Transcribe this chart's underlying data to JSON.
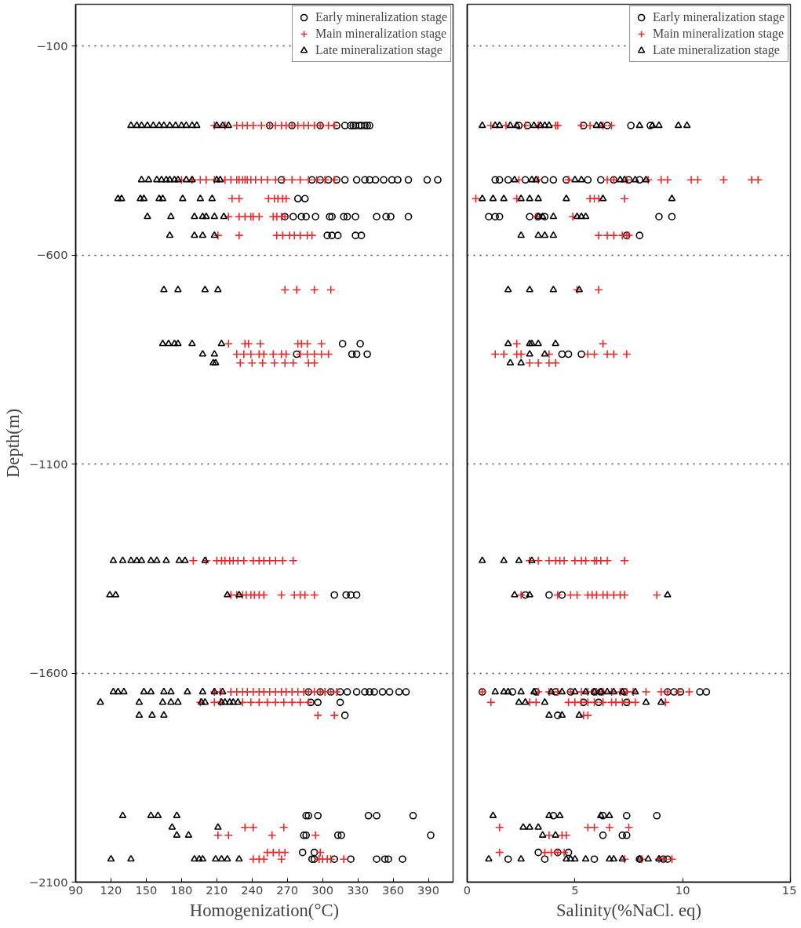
{
  "chart_data": [
    {
      "type": "scatter",
      "xlabel": "Homogenization(°C)",
      "ylabel": "Depth(m)",
      "xlim": [
        90,
        411
      ],
      "xticks": [
        90,
        120,
        150,
        180,
        210,
        240,
        270,
        300,
        330,
        360,
        390
      ],
      "ylim": [
        -2100,
        0
      ],
      "yticks": [
        -100,
        -600,
        -1100,
        -1600,
        -2100
      ],
      "grid": "y",
      "legend": "top right",
      "series": [
        {
          "name": "Early mineralization stage",
          "color": "#000000",
          "marker": "circle",
          "x": [
            255,
            274,
            298,
            312,
            319,
            324,
            326,
            328,
            331,
            333,
            336,
            338,
            340,
            265,
            291,
            298,
            305,
            312,
            319,
            329,
            336,
            340,
            345,
            352,
            359,
            364,
            373,
            389,
            398,
            279,
            285,
            268,
            275,
            282,
            286,
            294,
            306,
            308,
            318,
            321,
            328,
            346,
            354,
            358,
            373,
            304,
            308,
            313,
            328,
            333,
            317,
            332,
            278,
            325,
            329,
            338,
            310,
            320,
            324,
            329,
            288,
            298,
            307,
            315,
            321,
            329,
            336,
            340,
            344,
            351,
            357,
            365,
            371,
            290,
            296,
            315,
            319,
            286,
            288,
            296,
            339,
            346,
            377,
            284,
            286,
            313,
            316,
            392,
            283,
            293,
            291,
            293,
            310,
            324,
            346,
            353,
            356,
            368
          ],
          "values": [
            -290,
            -290,
            -290,
            -290,
            -290,
            -290,
            -290,
            -290,
            -290,
            -290,
            -290,
            -290,
            -290,
            -420,
            -420,
            -420,
            -420,
            -420,
            -420,
            -420,
            -420,
            -420,
            -420,
            -420,
            -420,
            -420,
            -420,
            -420,
            -420,
            -465,
            -465,
            -508,
            -508,
            -508,
            -508,
            -508,
            -508,
            -508,
            -508,
            -508,
            -508,
            -508,
            -508,
            -508,
            -508,
            -553,
            -553,
            -553,
            -553,
            -553,
            -812,
            -812,
            -837,
            -837,
            -837,
            -837,
            -1413,
            -1413,
            -1413,
            -1413,
            -1645,
            -1645,
            -1645,
            -1645,
            -1645,
            -1645,
            -1645,
            -1645,
            -1645,
            -1645,
            -1645,
            -1645,
            -1645,
            -1670,
            -1670,
            -1670,
            -1701,
            -1941,
            -1941,
            -1941,
            -1941,
            -1941,
            -1941,
            -1988,
            -1988,
            -1988,
            -1988,
            -1988,
            -2029,
            -2029,
            -2045,
            -2045,
            -2045,
            -2045,
            -2045,
            -2045,
            -2045,
            -2045
          ]
        },
        {
          "name": "Main mineralization stage",
          "color": "#e8282b",
          "marker": "cross",
          "x": [
            208,
            217,
            227,
            232,
            236,
            241,
            248,
            255,
            260,
            265,
            269,
            274,
            279,
            284,
            288,
            293,
            298,
            305,
            310,
            180,
            189,
            196,
            201,
            208,
            217,
            222,
            227,
            229,
            232,
            234,
            236,
            239,
            243,
            248,
            253,
            260,
            267,
            274,
            281,
            288,
            295,
            302,
            310,
            223,
            229,
            254,
            259,
            262,
            266,
            269,
            220,
            229,
            234,
            239,
            241,
            246,
            258,
            261,
            265,
            268,
            211,
            229,
            261,
            266,
            272,
            276,
            281,
            287,
            291,
            268,
            278,
            293,
            307,
            220,
            234,
            237,
            247,
            279,
            282,
            287,
            299,
            227,
            233,
            239,
            246,
            250,
            258,
            265,
            269,
            281,
            287,
            293,
            299,
            305,
            230,
            240,
            249,
            259,
            268,
            275,
            288,
            293,
            190,
            201,
            210,
            214,
            217,
            221,
            224,
            228,
            233,
            241,
            246,
            250,
            255,
            260,
            266,
            275,
            222,
            227,
            232,
            235,
            239,
            242,
            246,
            250,
            265,
            276,
            281,
            285,
            293,
            208,
            213,
            222,
            227,
            232,
            236,
            241,
            246,
            250,
            255,
            260,
            265,
            269,
            274,
            279,
            284,
            288,
            293,
            298,
            302,
            307,
            312,
            196,
            208,
            213,
            232,
            239,
            246,
            253,
            260,
            267,
            274,
            281,
            288,
            296,
            310,
            234,
            241,
            267,
            211,
            220,
            257,
            294,
            253,
            258,
            263,
            268,
            298,
            241,
            246,
            250,
            265,
            297,
            300,
            304,
            307,
            318
          ],
          "values": [
            -290,
            -290,
            -290,
            -290,
            -290,
            -290,
            -290,
            -290,
            -290,
            -290,
            -290,
            -290,
            -290,
            -290,
            -290,
            -290,
            -290,
            -290,
            -290,
            -420,
            -420,
            -420,
            -420,
            -420,
            -420,
            -420,
            -420,
            -420,
            -420,
            -420,
            -420,
            -420,
            -420,
            -420,
            -420,
            -420,
            -420,
            -420,
            -420,
            -420,
            -420,
            -420,
            -420,
            -465,
            -465,
            -465,
            -465,
            -465,
            -465,
            -465,
            -508,
            -508,
            -508,
            -508,
            -508,
            -508,
            -508,
            -508,
            -508,
            -508,
            -553,
            -553,
            -553,
            -553,
            -553,
            -553,
            -553,
            -553,
            -553,
            -683,
            -683,
            -683,
            -683,
            -812,
            -812,
            -812,
            -812,
            -812,
            -812,
            -812,
            -812,
            -837,
            -837,
            -837,
            -837,
            -837,
            -837,
            -837,
            -837,
            -837,
            -837,
            -837,
            -837,
            -837,
            -858,
            -858,
            -858,
            -858,
            -858,
            -858,
            -858,
            -858,
            -1331,
            -1331,
            -1331,
            -1331,
            -1331,
            -1331,
            -1331,
            -1331,
            -1331,
            -1331,
            -1331,
            -1331,
            -1331,
            -1331,
            -1331,
            -1331,
            -1413,
            -1413,
            -1413,
            -1413,
            -1413,
            -1413,
            -1413,
            -1413,
            -1413,
            -1413,
            -1413,
            -1413,
            -1413,
            -1645,
            -1645,
            -1645,
            -1645,
            -1645,
            -1645,
            -1645,
            -1645,
            -1645,
            -1645,
            -1645,
            -1645,
            -1645,
            -1645,
            -1645,
            -1645,
            -1645,
            -1645,
            -1645,
            -1645,
            -1645,
            -1645,
            -1670,
            -1670,
            -1670,
            -1670,
            -1670,
            -1670,
            -1670,
            -1670,
            -1670,
            -1670,
            -1670,
            -1670,
            -1701,
            -1701,
            -1969,
            -1969,
            -1969,
            -1988,
            -1988,
            -1988,
            -1988,
            -2029,
            -2029,
            -2029,
            -2029,
            -2029,
            -2045,
            -2045,
            -2045,
            -2045,
            -2045,
            -2045,
            -2045,
            -2045,
            -2045
          ]
        },
        {
          "name": "Late mineralization stage",
          "color": "#000000",
          "marker": "triangle",
          "x": [
            137,
            142,
            146,
            151,
            156,
            161,
            165,
            170,
            175,
            180,
            184,
            189,
            193,
            210,
            215,
            220,
            146,
            152,
            159,
            163,
            167,
            170,
            174,
            177,
            184,
            189,
            210,
            213,
            126,
            129,
            145,
            148,
            161,
            164,
            181,
            196,
            206,
            151,
            171,
            191,
            198,
            201,
            208,
            216,
            170,
            191,
            198,
            208,
            165,
            177,
            200,
            211,
            164,
            169,
            174,
            177,
            189,
            214,
            198,
            208,
            207,
            209,
            122,
            130,
            137,
            142,
            146,
            154,
            159,
            167,
            178,
            183,
            200,
            119,
            124,
            219,
            229,
            122,
            126,
            131,
            148,
            154,
            165,
            171,
            185,
            198,
            208,
            215,
            111,
            144,
            164,
            171,
            177,
            197,
            200,
            214,
            217,
            221,
            224,
            228,
            144,
            155,
            165,
            130,
            154,
            160,
            176,
            172,
            211,
            176,
            186,
            120,
            137,
            191,
            195,
            198,
            209,
            214,
            219,
            229
          ],
          "values": [
            -290,
            -290,
            -290,
            -290,
            -290,
            -290,
            -290,
            -290,
            -290,
            -290,
            -290,
            -290,
            -290,
            -290,
            -290,
            -290,
            -420,
            -420,
            -420,
            -420,
            -420,
            -420,
            -420,
            -420,
            -420,
            -420,
            -420,
            -420,
            -465,
            -465,
            -465,
            -465,
            -465,
            -465,
            -465,
            -465,
            -465,
            -508,
            -508,
            -508,
            -508,
            -508,
            -508,
            -508,
            -553,
            -553,
            -553,
            -553,
            -683,
            -683,
            -683,
            -683,
            -812,
            -812,
            -812,
            -812,
            -812,
            -812,
            -837,
            -837,
            -858,
            -858,
            -1331,
            -1331,
            -1331,
            -1331,
            -1331,
            -1331,
            -1331,
            -1331,
            -1331,
            -1331,
            -1331,
            -1413,
            -1413,
            -1413,
            -1413,
            -1645,
            -1645,
            -1645,
            -1645,
            -1645,
            -1645,
            -1645,
            -1645,
            -1645,
            -1645,
            -1645,
            -1670,
            -1670,
            -1670,
            -1670,
            -1670,
            -1670,
            -1670,
            -1670,
            -1670,
            -1670,
            -1670,
            -1670,
            -1701,
            -1701,
            -1701,
            -1941,
            -1941,
            -1941,
            -1941,
            -1969,
            -1969,
            -1988,
            -1988,
            -2045,
            -2045,
            -2045,
            -2045,
            -2045,
            -2045,
            -2045,
            -2045,
            -2045
          ]
        }
      ]
    },
    {
      "type": "scatter",
      "xlabel": "Salinity(%NaCl. eq)",
      "xlim": [
        0,
        15
      ],
      "xticks": [
        0,
        5,
        10,
        15
      ],
      "ylim": [
        -2100,
        0
      ],
      "yticks": [
        -100,
        -600,
        -1100,
        -1600,
        -2100
      ],
      "grid": "y",
      "legend": "top right",
      "tick_labels": "x",
      "series": [
        {
          "name": "Early mineralization stage",
          "color": "#000000",
          "marker": "circle",
          "x": [
            2.4,
            2.8,
            5.4,
            6.5,
            7.6,
            8.5,
            1.3,
            1.5,
            1.9,
            2.7,
            3.6,
            4.0,
            4.6,
            5.6,
            6.2,
            6.8,
            7.5,
            8.0,
            1.0,
            1.3,
            1.5,
            2.9,
            3.3,
            3.6,
            8.9,
            9.5,
            7.4,
            8.0,
            4.4,
            4.7,
            5.3,
            2.7,
            3.8,
            4.4,
            0.7,
            2.1,
            3.2,
            4.1,
            4.8,
            5.9,
            6.2,
            7.3,
            9.3,
            9.6,
            9.9,
            10.8,
            11.1,
            5.4,
            6.1,
            7.4,
            4.2,
            4.0,
            6.3,
            7.4,
            8.8,
            6.3,
            7.2,
            7.4,
            3.3,
            4.2,
            4.7,
            1.9,
            3.6,
            5.9,
            8.0,
            9.1,
            9.3
          ],
          "values": [
            -290,
            -290,
            -290,
            -290,
            -290,
            -290,
            -420,
            -420,
            -420,
            -420,
            -420,
            -420,
            -420,
            -420,
            -420,
            -420,
            -420,
            -420,
            -508,
            -508,
            -508,
            -508,
            -508,
            -508,
            -508,
            -508,
            -553,
            -553,
            -837,
            -837,
            -837,
            -1413,
            -1413,
            -1413,
            -1645,
            -1645,
            -1645,
            -1645,
            -1645,
            -1645,
            -1645,
            -1645,
            -1645,
            -1645,
            -1645,
            -1645,
            -1645,
            -1670,
            -1670,
            -1670,
            -1701,
            -1941,
            -1941,
            -1941,
            -1941,
            -1988,
            -1988,
            -1988,
            -2029,
            -2029,
            -2029,
            -2045,
            -2045,
            -2045,
            -2045,
            -2045,
            -2045
          ]
        },
        {
          "name": "Main mineralization stage",
          "color": "#e8282b",
          "marker": "cross",
          "x": [
            1.1,
            1.8,
            2.7,
            3.3,
            4.1,
            4.2,
            5.3,
            5.7,
            6.3,
            6.7,
            2.4,
            3.3,
            4.7,
            6.5,
            6.8,
            7.4,
            8.4,
            9.0,
            9.3,
            10.4,
            10.7,
            11.9,
            13.2,
            13.5,
            0.4,
            2.3,
            5.7,
            5.9,
            6.1,
            7.3,
            3.2,
            4.9,
            6.1,
            6.5,
            6.8,
            7.2,
            7.4,
            7.5,
            5.1,
            6.1,
            2.3,
            6.3,
            1.3,
            1.7,
            2.3,
            2.5,
            3.8,
            5.6,
            5.9,
            6.5,
            6.8,
            7.4,
            2.9,
            3.3,
            3.8,
            4.1,
            2.9,
            3.3,
            3.8,
            4.1,
            4.3,
            4.5,
            5.0,
            5.3,
            5.5,
            5.9,
            6.0,
            6.2,
            6.5,
            7.3,
            2.5,
            4.2,
            4.8,
            5.1,
            5.6,
            5.8,
            6.0,
            6.3,
            6.5,
            6.8,
            7.1,
            7.3,
            8.8,
            0.7,
            3.3,
            3.8,
            4.2,
            4.8,
            5.3,
            5.6,
            6.0,
            6.3,
            6.7,
            7.1,
            7.4,
            7.7,
            8.3,
            9.0,
            9.3,
            9.8,
            10.3,
            1.1,
            2.9,
            3.2,
            4.7,
            5.0,
            5.3,
            5.6,
            5.9,
            6.3,
            6.7,
            6.9,
            7.2,
            7.5,
            7.8,
            9.2,
            5.4,
            5.6,
            1.5,
            5.6,
            5.9,
            6.6,
            7.5,
            3.8,
            4.4,
            4.6,
            1.5,
            3.6,
            3.9,
            4.2,
            4.5,
            7.3,
            8.1,
            8.9,
            9.1,
            9.5
          ],
          "values": [
            -290,
            -290,
            -290,
            -290,
            -290,
            -290,
            -290,
            -290,
            -290,
            -290,
            -420,
            -420,
            -420,
            -420,
            -420,
            -420,
            -420,
            -420,
            -420,
            -420,
            -420,
            -420,
            -420,
            -420,
            -465,
            -465,
            -465,
            -465,
            -465,
            -465,
            -508,
            -508,
            -553,
            -553,
            -553,
            -553,
            -553,
            -553,
            -683,
            -683,
            -812,
            -812,
            -837,
            -837,
            -837,
            -837,
            -837,
            -837,
            -837,
            -837,
            -837,
            -837,
            -858,
            -858,
            -858,
            -858,
            -1331,
            -1331,
            -1331,
            -1331,
            -1331,
            -1331,
            -1331,
            -1331,
            -1331,
            -1331,
            -1331,
            -1331,
            -1331,
            -1331,
            -1413,
            -1413,
            -1413,
            -1413,
            -1413,
            -1413,
            -1413,
            -1413,
            -1413,
            -1413,
            -1413,
            -1413,
            -1413,
            -1645,
            -1645,
            -1645,
            -1645,
            -1645,
            -1645,
            -1645,
            -1645,
            -1645,
            -1645,
            -1645,
            -1645,
            -1645,
            -1645,
            -1645,
            -1645,
            -1645,
            -1645,
            -1670,
            -1670,
            -1670,
            -1670,
            -1670,
            -1670,
            -1670,
            -1670,
            -1670,
            -1670,
            -1670,
            -1670,
            -1670,
            -1670,
            -1670,
            -1701,
            -1701,
            -1969,
            -1969,
            -1969,
            -1969,
            -1969,
            -1988,
            -1988,
            -1988,
            -2029,
            -2029,
            -2029,
            -2029,
            -2029,
            -2045,
            -2045,
            -2045,
            -2045,
            -2045
          ]
        },
        {
          "name": "Late mineralization stage",
          "color": "#000000",
          "marker": "triangle",
          "x": [
            0.7,
            1.3,
            1.5,
            2.0,
            2.3,
            3.1,
            3.4,
            3.6,
            3.8,
            6.0,
            6.2,
            8.0,
            8.6,
            8.9,
            9.8,
            10.2,
            2.2,
            3.0,
            3.2,
            5.0,
            5.3,
            7.1,
            7.3,
            7.8,
            8.3,
            0.7,
            1.2,
            1.7,
            2.5,
            2.9,
            3.3,
            4.6,
            6.3,
            9.5,
            3.3,
            3.5,
            4.0,
            5.1,
            5.3,
            5.5,
            2.5,
            3.3,
            3.6,
            4.0,
            1.9,
            2.9,
            4.0,
            5.2,
            1.9,
            2.9,
            3.0,
            3.3,
            4.1,
            2.9,
            3.6,
            2.0,
            2.5,
            0.7,
            1.7,
            2.4,
            3.0,
            2.2,
            2.9,
            9.3,
            1.3,
            1.7,
            1.9,
            2.5,
            3.1,
            3.9,
            4.4,
            5.0,
            5.5,
            5.9,
            6.2,
            6.5,
            6.8,
            7.2,
            7.8,
            2.4,
            2.7,
            3.6,
            8.3,
            9.0,
            3.8,
            4.4,
            5.2,
            1.2,
            3.8,
            4.3,
            6.2,
            6.6,
            2.6,
            2.9,
            3.3,
            3.5,
            4.1,
            1.0,
            2.5,
            4.6,
            4.8,
            5.0,
            5.5,
            6.6,
            6.8,
            7.2,
            8.0,
            8.4,
            8.9
          ],
          "values": [
            -290,
            -290,
            -290,
            -290,
            -290,
            -290,
            -290,
            -290,
            -290,
            -290,
            -290,
            -290,
            -290,
            -290,
            -290,
            -290,
            -420,
            -420,
            -420,
            -420,
            -420,
            -420,
            -420,
            -420,
            -420,
            -465,
            -465,
            -465,
            -465,
            -465,
            -465,
            -465,
            -465,
            -465,
            -508,
            -508,
            -508,
            -508,
            -508,
            -508,
            -553,
            -553,
            -553,
            -553,
            -683,
            -683,
            -683,
            -683,
            -812,
            -812,
            -812,
            -812,
            -812,
            -837,
            -837,
            -858,
            -858,
            -1331,
            -1331,
            -1331,
            -1331,
            -1413,
            -1413,
            -1413,
            -1645,
            -1645,
            -1645,
            -1645,
            -1645,
            -1645,
            -1645,
            -1645,
            -1645,
            -1645,
            -1645,
            -1645,
            -1645,
            -1645,
            -1645,
            -1670,
            -1670,
            -1670,
            -1670,
            -1670,
            -1701,
            -1701,
            -1701,
            -1941,
            -1941,
            -1941,
            -1941,
            -1941,
            -1969,
            -1969,
            -1969,
            -1988,
            -1988,
            -2045,
            -2045,
            -2045,
            -2045,
            -2045,
            -2045,
            -2045,
            -2045,
            -2045,
            -2045,
            -2045,
            -2045
          ]
        }
      ]
    }
  ]
}
